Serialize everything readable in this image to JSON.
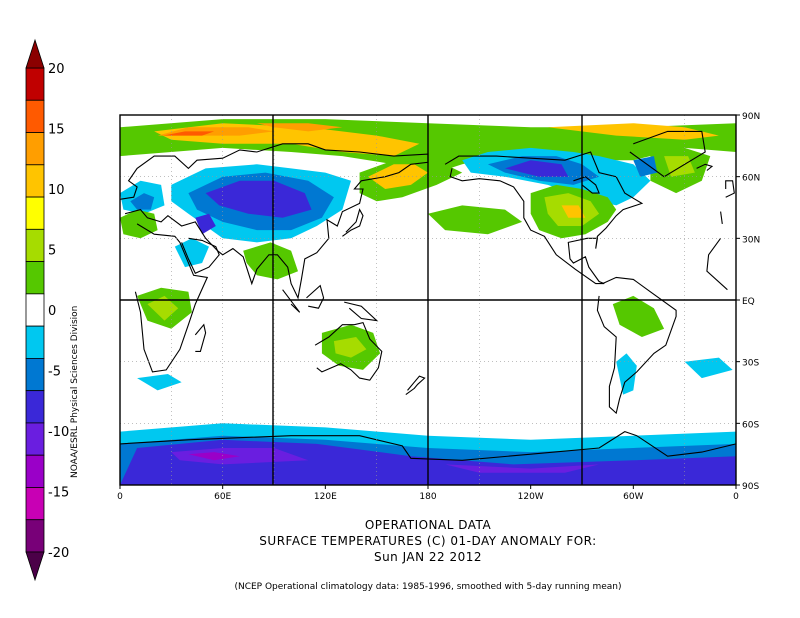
{
  "colorbar": {
    "labels": [
      "20",
      "15",
      "10",
      "5",
      "0",
      "-5",
      "-10",
      "-15",
      "-20"
    ],
    "colors": [
      "#c00000",
      "#ff5a00",
      "#ff9e00",
      "#ffc400",
      "#ffff00",
      "#a6dc00",
      "#55c800",
      "#ffffff",
      "#00c8f0",
      "#0078d2",
      "#3a28d8",
      "#6a1ee0",
      "#9a00c8",
      "#c800b4",
      "#780078"
    ]
  },
  "map": {
    "lat_labels": [
      "90N",
      "60N",
      "30N",
      "EQ",
      "30S",
      "60S",
      "90S"
    ],
    "lon_labels": [
      "0",
      "60E",
      "120E",
      "180",
      "120W",
      "60W",
      "0"
    ],
    "anomaly_colors": {
      "warm_light": "#a6dc00",
      "warm_green": "#55c800",
      "warm_yellow": "#ffc400",
      "warm_orange": "#ff9e00",
      "warm_red": "#ff5a00",
      "cool_cyan": "#00c8f0",
      "cool_blue": "#0078d2",
      "cool_indigo": "#3a28d8",
      "cool_purple": "#6a1ee0",
      "cool_violet": "#9a00c8"
    }
  },
  "credit": "NOAA/ESRL Physical Sciences Division",
  "caption": {
    "line1": "OPERATIONAL DATA",
    "line2": "SURFACE TEMPERATURES (C)   01-DAY ANOMALY FOR:",
    "line3": "Sun JAN 22 2012"
  },
  "footnote": "(NCEP Operational climatology data: 1985-1996, smoothed with 5-day running mean)"
}
